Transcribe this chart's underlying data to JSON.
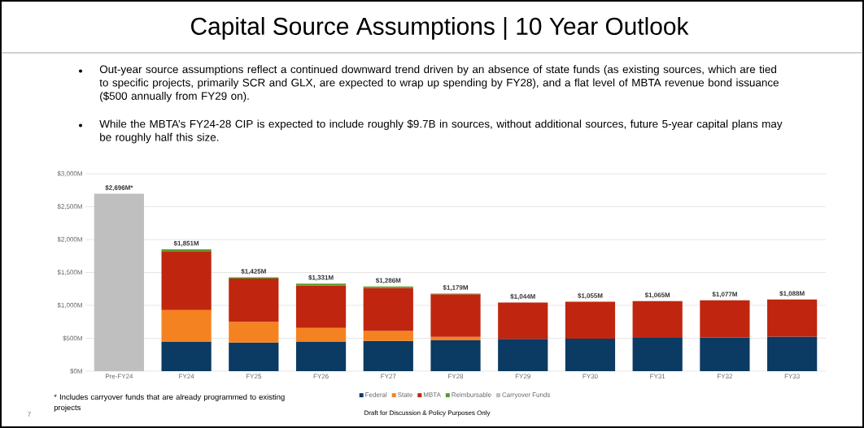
{
  "chart_data": {
    "type": "bar",
    "stacked": true,
    "title": "Capital Source Assumptions | 10 Year Outlook",
    "categories": [
      "Pre-FY24",
      "FY24",
      "FY25",
      "FY26",
      "FY27",
      "FY28",
      "FY29",
      "FY30",
      "FY31",
      "FY32",
      "FY33"
    ],
    "series": [
      {
        "name": "Federal",
        "color": "#0b3a63",
        "values": [
          null,
          450,
          435,
          450,
          460,
          470,
          490,
          495,
          505,
          510,
          525
        ]
      },
      {
        "name": "State",
        "color": "#f58220",
        "values": [
          null,
          480,
          315,
          206,
          151,
          50,
          null,
          null,
          null,
          null,
          null
        ]
      },
      {
        "name": "MBTA",
        "color": "#c0260f",
        "values": [
          null,
          894,
          656,
          647,
          655,
          651,
          554,
          560,
          560,
          567,
          563
        ]
      },
      {
        "name": "Reimbursable",
        "color": "#5a9a28",
        "values": [
          null,
          27,
          19,
          28,
          20,
          8,
          null,
          null,
          null,
          null,
          null
        ]
      },
      {
        "name": "Carryover Funds",
        "color": "#bfbfbf",
        "values": [
          2696,
          null,
          null,
          null,
          null,
          null,
          null,
          null,
          null,
          null,
          null
        ]
      }
    ],
    "totals": [
      "$2,696M*",
      "$1,851M",
      "$1,425M",
      "$1,331M",
      "$1,286M",
      "$1,179M",
      "$1,044M",
      "$1,055M",
      "$1,065M",
      "$1,077M",
      "$1,088M"
    ],
    "ylim": [
      0,
      3000
    ],
    "yticks": [
      {
        "value": 0,
        "label": "$0M"
      },
      {
        "value": 500,
        "label": "$500M"
      },
      {
        "value": 1000,
        "label": "$1,000M"
      },
      {
        "value": 1500,
        "label": "$1,500M"
      },
      {
        "value": 2000,
        "label": "$2,000M"
      },
      {
        "value": 2500,
        "label": "$2,500M"
      },
      {
        "value": 3000,
        "label": "$3,000M"
      }
    ],
    "grid": "y",
    "legend": "bottom",
    "annotations": [
      "Out-year source assumptions reflect a continued downward trend driven by an absence of state funds (as existing sources, which are tied to specific projects, primarily SCR and GLX, are expected to wrap up spending by FY28), and a flat level of MBTA revenue bond issuance ($500 annually from FY29 on).",
      "While the MBTA’s FY24-28 CIP is expected to include roughly $9.7B in sources, without additional sources, future 5-year capital plans may be roughly half this size.",
      "* Includes carryover funds that are already programmed to existing projects",
      "Draft for Discussion & Policy Purposes Only",
      "7"
    ]
  }
}
